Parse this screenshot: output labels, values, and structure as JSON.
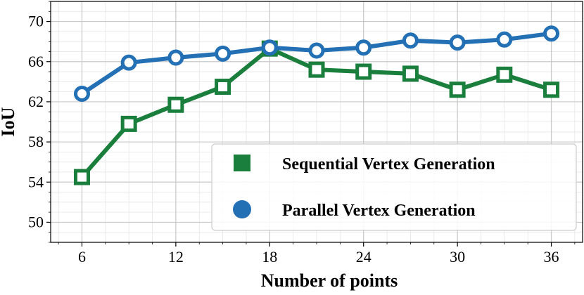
{
  "chart_data": {
    "type": "line",
    "title": "",
    "xlabel": "Number of points",
    "ylabel": "IoU",
    "x": [
      6,
      9,
      12,
      15,
      18,
      21,
      24,
      27,
      30,
      33,
      36
    ],
    "xlim": [
      4,
      38
    ],
    "ylim": [
      48,
      72
    ],
    "xticks": [
      "6",
      "12",
      "18",
      "24",
      "30",
      "36"
    ],
    "yticks": [
      "50",
      "54",
      "58",
      "62",
      "66",
      "70"
    ],
    "xtick_values": [
      6,
      12,
      18,
      24,
      30,
      36
    ],
    "ytick_values": [
      50,
      54,
      58,
      62,
      66,
      70
    ],
    "grid": true,
    "legend_position": "lower-right",
    "series": [
      {
        "name": "Sequential Vertex Generation",
        "marker": "square",
        "color": "#1a7f3c",
        "values": [
          54.5,
          59.8,
          61.7,
          63.5,
          67.3,
          65.2,
          65.0,
          64.8,
          63.2,
          64.7,
          63.2
        ]
      },
      {
        "name": "Parallel Vertex Generation",
        "marker": "circle",
        "color": "#2370b5",
        "values": [
          62.8,
          65.9,
          66.4,
          66.8,
          67.4,
          67.1,
          67.4,
          68.1,
          67.9,
          68.2,
          68.8
        ]
      }
    ]
  }
}
